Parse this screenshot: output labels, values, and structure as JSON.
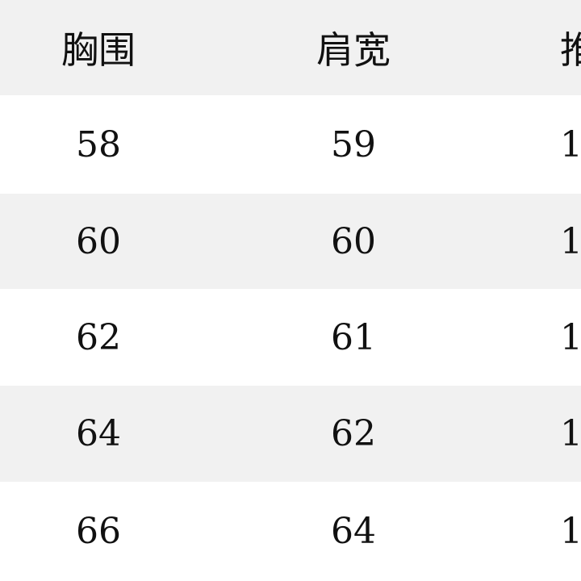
{
  "table": {
    "headers": [
      "胸围",
      "肩宽",
      "推"
    ],
    "rows": [
      [
        "58",
        "59",
        "1"
      ],
      [
        "60",
        "60",
        "1"
      ],
      [
        "62",
        "61",
        "1"
      ],
      [
        "64",
        "62",
        "1"
      ],
      [
        "66",
        "64",
        "1"
      ]
    ]
  },
  "colors": {
    "header_bg": "#f1f1f1",
    "stripe_bg": "#f1f1f1",
    "text": "#111111"
  }
}
